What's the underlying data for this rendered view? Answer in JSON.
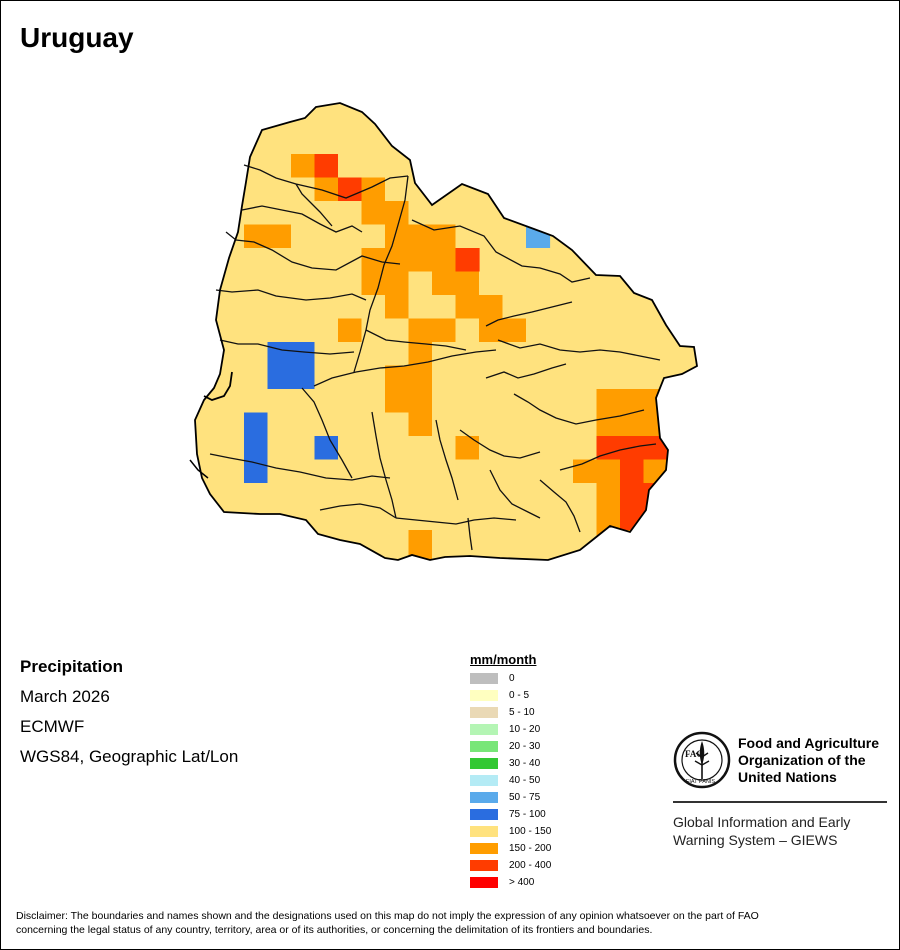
{
  "map": {
    "title": "Uruguay",
    "variable": "Precipitation",
    "period": "March 2026",
    "source": "ECMWF",
    "projection": "WGS84, Geographic Lat/Lon"
  },
  "legend": {
    "title": "mm/month",
    "classes": [
      {
        "label": "0",
        "color": "#bebebe"
      },
      {
        "label": "0 - 5",
        "color": "#ffffc0"
      },
      {
        "label": "5 - 10",
        "color": "#ead9b5"
      },
      {
        "label": "10 - 20",
        "color": "#b4f5b4"
      },
      {
        "label": "20 - 30",
        "color": "#78e678"
      },
      {
        "label": "30 - 40",
        "color": "#32c832"
      },
      {
        "label": "40 - 50",
        "color": "#b4ebf5"
      },
      {
        "label": "50 - 75",
        "color": "#5aaaeb"
      },
      {
        "label": "75 - 100",
        "color": "#2a6de0"
      },
      {
        "label": "100 - 150",
        "color": "#ffe27e"
      },
      {
        "label": "150 - 200",
        "color": "#ff9d00"
      },
      {
        "label": "200 - 400",
        "color": "#ff3c00"
      },
      {
        "label": "> 400",
        "color": "#ff0000"
      }
    ]
  },
  "org": {
    "logo_text": "FAO",
    "logo_motto": "FIAT PANIS",
    "name_line1": "Food and Agriculture",
    "name_line2": "Organization of the",
    "name_line3": "United Nations",
    "system_line1": "Global Information and Early",
    "system_line2": "Warning System – GIEWS"
  },
  "disclaimer_line1": "Disclaimer: The boundaries and names shown and the designations used on this map do not imply the expression of any opinion whatsoever on the part of FAO",
  "disclaimer_line2": "concerning the legal status of any country, territory, area or of its authorities, or concerning the delimitation of its frontiers and boundaries."
}
